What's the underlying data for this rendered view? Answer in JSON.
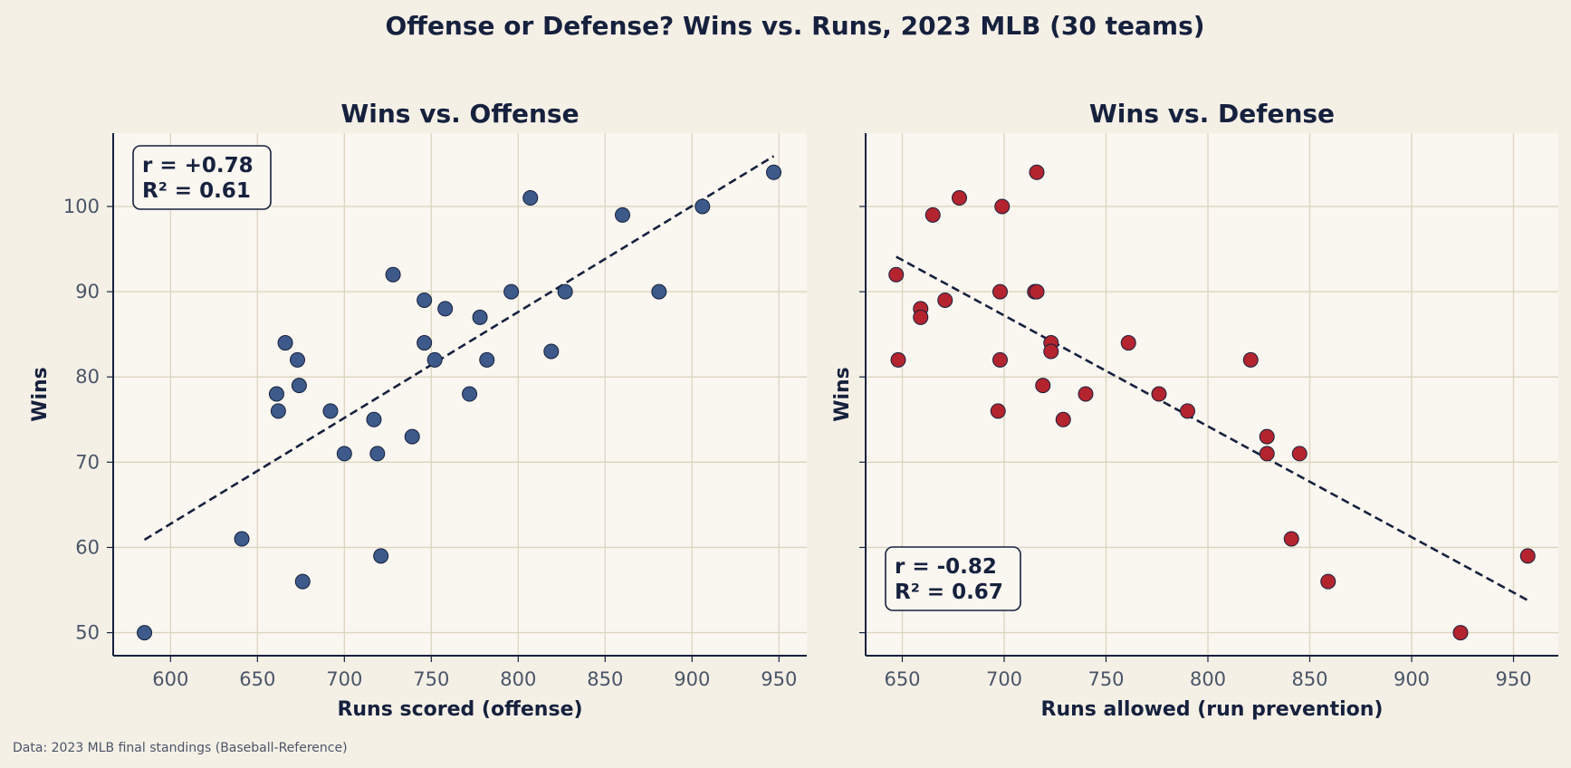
{
  "figure": {
    "title": "Offense or Defense? Wins vs. Runs, 2023 MLB (30 teams)",
    "source_note": "Data: 2023 MLB final standings (Baseball-Reference)",
    "background_color": "#f5f0e6",
    "plot_background_color": "#faf6f0",
    "grid_color": "#ddd5c0",
    "text_color": "#16213e"
  },
  "chart_data": [
    {
      "type": "scatter",
      "title": "Wins vs. Offense",
      "xlabel": "Runs scored (offense)",
      "ylabel": "Wins",
      "xlim": [
        567,
        966
      ],
      "ylim": [
        47.3,
        108.6
      ],
      "xticks": [
        600,
        650,
        700,
        750,
        800,
        850,
        900,
        950
      ],
      "yticks": [
        50,
        60,
        70,
        80,
        90,
        100
      ],
      "grid": true,
      "point_color": "#3d5a8a",
      "trend_color": "#16213e",
      "stats": {
        "r": "r = +0.78",
        "r2": "R² = 0.61"
      },
      "stats_position": "top-left",
      "trendline": {
        "x": [
          585,
          947
        ],
        "y": [
          60.9,
          105.9
        ]
      },
      "points": [
        {
          "x": 585,
          "y": 50
        },
        {
          "x": 641,
          "y": 61
        },
        {
          "x": 661,
          "y": 78
        },
        {
          "x": 662,
          "y": 76
        },
        {
          "x": 666,
          "y": 84
        },
        {
          "x": 673,
          "y": 82
        },
        {
          "x": 674,
          "y": 79
        },
        {
          "x": 676,
          "y": 56
        },
        {
          "x": 692,
          "y": 76
        },
        {
          "x": 700,
          "y": 71
        },
        {
          "x": 717,
          "y": 75
        },
        {
          "x": 719,
          "y": 71
        },
        {
          "x": 721,
          "y": 59
        },
        {
          "x": 728,
          "y": 92
        },
        {
          "x": 739,
          "y": 73
        },
        {
          "x": 746,
          "y": 89
        },
        {
          "x": 746,
          "y": 84
        },
        {
          "x": 752,
          "y": 82
        },
        {
          "x": 758,
          "y": 88
        },
        {
          "x": 772,
          "y": 78
        },
        {
          "x": 778,
          "y": 87
        },
        {
          "x": 782,
          "y": 82
        },
        {
          "x": 796,
          "y": 90
        },
        {
          "x": 807,
          "y": 101
        },
        {
          "x": 819,
          "y": 83
        },
        {
          "x": 827,
          "y": 90
        },
        {
          "x": 860,
          "y": 99
        },
        {
          "x": 881,
          "y": 90
        },
        {
          "x": 906,
          "y": 100
        },
        {
          "x": 947,
          "y": 104
        }
      ]
    },
    {
      "type": "scatter",
      "title": "Wins vs. Defense",
      "xlabel": "Runs allowed (run prevention)",
      "ylabel": "Wins",
      "xlim": [
        632,
        972
      ],
      "ylim": [
        47.3,
        108.6
      ],
      "xticks": [
        650,
        700,
        750,
        800,
        850,
        900,
        950
      ],
      "yticks": [
        50,
        60,
        70,
        80,
        90,
        100
      ],
      "grid": true,
      "point_color": "#b3242e",
      "trend_color": "#16213e",
      "stats": {
        "r": "r = -0.82",
        "r2": "R² = 0.67"
      },
      "stats_position": "bottom-left",
      "trendline": {
        "x": [
          647,
          957
        ],
        "y": [
          94.1,
          53.8
        ]
      },
      "points": [
        {
          "x": 647,
          "y": 92
        },
        {
          "x": 648,
          "y": 82
        },
        {
          "x": 659,
          "y": 88
        },
        {
          "x": 659,
          "y": 87
        },
        {
          "x": 665,
          "y": 99
        },
        {
          "x": 671,
          "y": 89
        },
        {
          "x": 678,
          "y": 101
        },
        {
          "x": 697,
          "y": 76
        },
        {
          "x": 698,
          "y": 90
        },
        {
          "x": 698,
          "y": 82
        },
        {
          "x": 699,
          "y": 100
        },
        {
          "x": 715,
          "y": 90
        },
        {
          "x": 716,
          "y": 90
        },
        {
          "x": 716,
          "y": 104
        },
        {
          "x": 719,
          "y": 79
        },
        {
          "x": 723,
          "y": 84
        },
        {
          "x": 723,
          "y": 83
        },
        {
          "x": 729,
          "y": 75
        },
        {
          "x": 740,
          "y": 78
        },
        {
          "x": 761,
          "y": 84
        },
        {
          "x": 776,
          "y": 78
        },
        {
          "x": 790,
          "y": 76
        },
        {
          "x": 821,
          "y": 82
        },
        {
          "x": 829,
          "y": 73
        },
        {
          "x": 829,
          "y": 71
        },
        {
          "x": 841,
          "y": 61
        },
        {
          "x": 845,
          "y": 71
        },
        {
          "x": 859,
          "y": 56
        },
        {
          "x": 924,
          "y": 50
        },
        {
          "x": 957,
          "y": 59
        }
      ]
    }
  ]
}
